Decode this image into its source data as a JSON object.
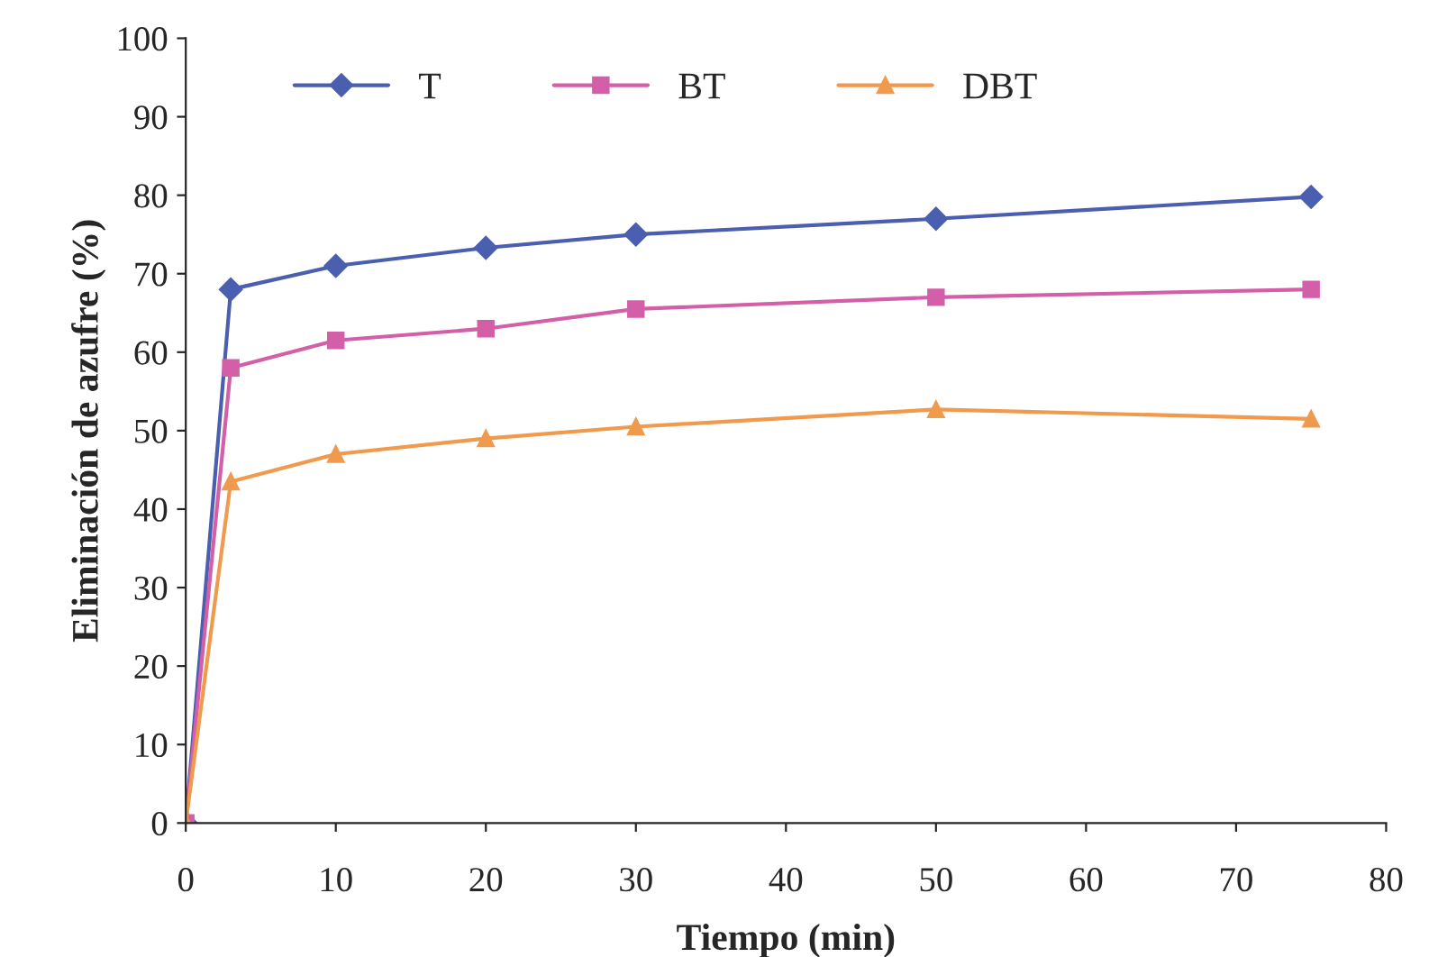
{
  "chart_data": {
    "type": "line",
    "xlabel": "Tiempo (min)",
    "ylabel": "Eliminación de azufre (%)",
    "x": [
      0,
      3,
      10,
      20,
      30,
      50,
      75
    ],
    "series": [
      {
        "name": "T",
        "color": "#4a5fb0",
        "marker": "diamond",
        "values": [
          0,
          68,
          71,
          73.3,
          75,
          77,
          79.8
        ]
      },
      {
        "name": "BT",
        "color": "#d35fa8",
        "marker": "square",
        "values": [
          0,
          58,
          61.5,
          63,
          65.5,
          67,
          68
        ]
      },
      {
        "name": "DBT",
        "color": "#f09a4e",
        "marker": "triangle",
        "values": [
          0,
          43.5,
          47,
          49,
          50.5,
          52.7,
          51.5
        ]
      }
    ],
    "xlim": [
      0,
      80
    ],
    "xticks": [
      0,
      10,
      20,
      30,
      40,
      50,
      60,
      70,
      80
    ],
    "ylim": [
      0,
      100
    ],
    "yticks": [
      0,
      10,
      20,
      30,
      40,
      50,
      60,
      70,
      80,
      90,
      100
    ],
    "grid": false,
    "legend": "top",
    "line_style": "solid"
  }
}
